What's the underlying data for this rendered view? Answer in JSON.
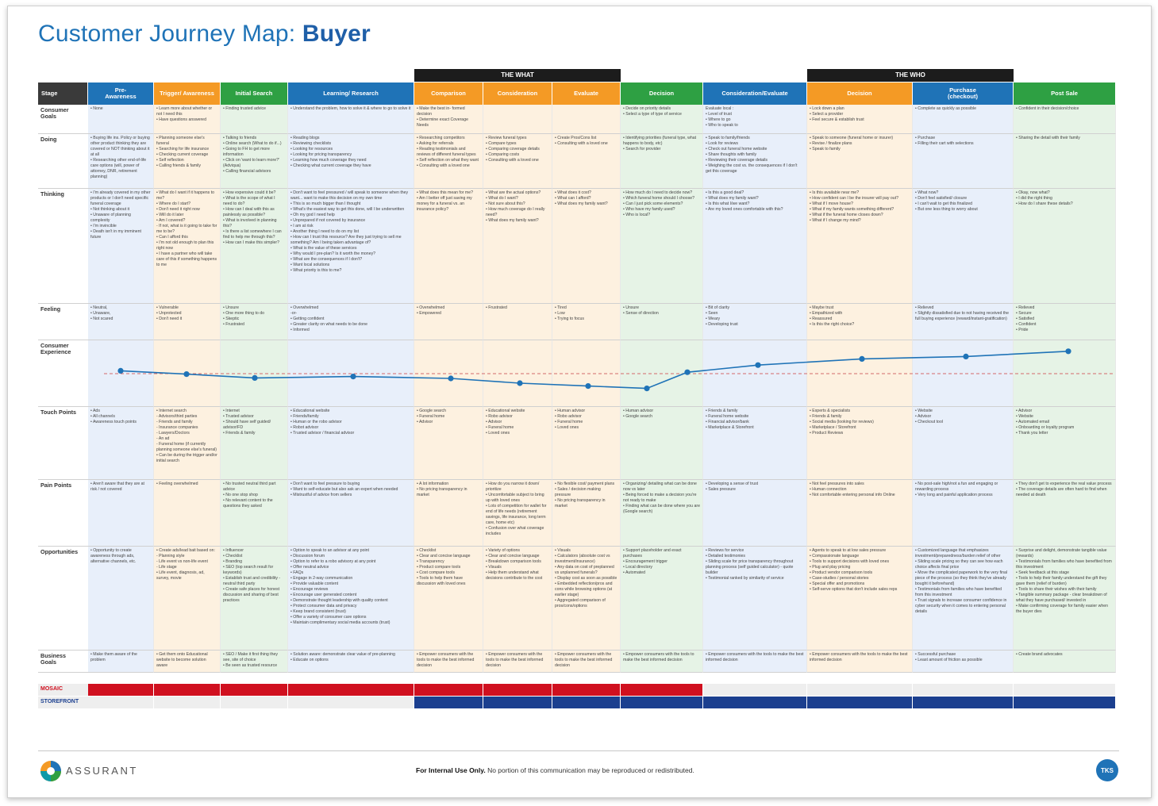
{
  "title_prefix": "Customer Journey Map: ",
  "title_bold": "Buyer",
  "bands": [
    {
      "label": "THE WHAT",
      "from": 4,
      "to": 6
    },
    {
      "label": "THE WHO",
      "from": 9,
      "to": 10
    }
  ],
  "stage_header": "Stage",
  "stages": [
    {
      "name": "Pre-\nAwareness",
      "color": "#1f73b7",
      "tint": "#e8effa"
    },
    {
      "name": "Trigger/ Awareness",
      "color": "#f49a25",
      "tint": "#fdf1e0"
    },
    {
      "name": "Initial Search",
      "color": "#2ea043",
      "tint": "#e6f3e6"
    },
    {
      "name": "Learning/ Research",
      "color": "#1f73b7",
      "tint": "#e8effa"
    },
    {
      "name": "Comparison",
      "color": "#f49a25",
      "tint": "#fdf1e0"
    },
    {
      "name": "Consideration",
      "color": "#f49a25",
      "tint": "#fdf1e0"
    },
    {
      "name": "Evaluate",
      "color": "#f49a25",
      "tint": "#fdf1e0"
    },
    {
      "name": "Decision",
      "color": "#2ea043",
      "tint": "#e6f3e6"
    },
    {
      "name": "Consideration/Evaluate",
      "color": "#1f73b7",
      "tint": "#e8effa"
    },
    {
      "name": "Decision",
      "color": "#f49a25",
      "tint": "#fdf1e0"
    },
    {
      "name": "Purchase\n(checkout)",
      "color": "#1f73b7",
      "tint": "#e8effa"
    },
    {
      "name": "Post Sale",
      "color": "#2ea043",
      "tint": "#e6f3e6"
    }
  ],
  "rows": [
    {
      "label": "Consumer\nGoals",
      "cells": [
        [
          "• None"
        ],
        [
          "• Learn more about whether or not I need this",
          "• Have questions answered"
        ],
        [
          "• Finding trusted advice"
        ],
        [
          "• Understand the problem, how to solve it & where to go to solve it"
        ],
        [
          "• Make the best in- formed decision",
          "• Determine exact Coverage Needs"
        ],
        [],
        [],
        [
          "• Decide on priority details",
          "• Select a type of type of service"
        ],
        [
          "Evaluate local :",
          "• Level of trust",
          "• Where to go",
          "• Who to speak to"
        ],
        [
          "• Lock down a plan",
          "• Select a provider",
          "• Feel secure & establish trust"
        ],
        [
          "• Complete as quickly as possible"
        ],
        [
          "• Confident in their decision/choice"
        ]
      ]
    },
    {
      "label": "Doing",
      "cells": [
        [
          "• Buying life ins. Policy or buying other product thinking they are covered or NOT thinking about it at all",
          "• Researching other end-of-life care options (will, power of attorney, DNR, retirement planning)"
        ],
        [
          "• Planning someone else's funeral",
          "• Searching for life insurance",
          "• Checking current coverage",
          "• Self reflection",
          "• Calling friends & family"
        ],
        [
          "• Talking to friends",
          "• Online search (What to do if...)",
          "• Going to FH to get more information",
          "• Click on 'want to learn more?' (Adviqua)",
          "• Calling financial advisors"
        ],
        [
          "• Reading blogs",
          "• Reviewing checklists",
          "• Looking for resources",
          "• Looking for pricing transparency",
          "• Learning how much coverage they need",
          "• Checking what current coverage they have"
        ],
        [
          "• Researching competitors",
          "• Asking for referrals",
          "• Reading testimonials and reviews of different funeral types",
          "• Self reflection on what they want",
          "• Consulting with a loved one"
        ],
        [
          "• Review funeral types",
          "• Compare types",
          "• Comparing coverage details",
          "• Comparing costs",
          "• Consulting with a loved one"
        ],
        [
          "• Create Pros/Cons list",
          "• Consulting with a loved one"
        ],
        [
          "• Identifying priorities (funeral type, what happens to body, etc)",
          "• Search for provider"
        ],
        [
          "• Speak to family/friends",
          "• Look for reviews",
          "• Check out funeral home website",
          "• Share thoughts with family",
          "• Reviewing their coverage details",
          "• Weighing the cost vs. the consequences if I don't get this coverage"
        ],
        [
          "• Speak to someone (funeral home or insurer)",
          "• Revise / finalize plans",
          "• Speak to family"
        ],
        [
          "• Purchase",
          "• Filling their cart with selections"
        ],
        [
          "• Sharing the detail with their family"
        ]
      ]
    },
    {
      "label": "Thinking",
      "cells": [
        [
          "• I'm already covered in my other products or I don't need specific funeral coverage",
          "• Not thinking about it",
          "• Unaware of planning complexity",
          "• I'm invincible",
          "• Death isn't in my imminent future"
        ],
        [
          "• What do I want if it happens to me?",
          "• Where do I start?",
          "• Don't need it right now",
          "• Will do it later",
          "• Am I covered?",
          "- If not, what is it going to take for me to be?",
          "• Can I afford this",
          "• I'm not old enough to plan this right now",
          "• I have a partner who will take care of this if something happens to me"
        ],
        [
          "• How expensive could it be?",
          "• What is the scope of what I need to do?",
          "• How can I deal with this as painlessly as possible?",
          "• What is involved in planning this?",
          "• Is there a list somewhere I can find to help me through this?",
          "• How can I make this simpler?"
        ],
        [
          "• Don't want to feel pressured / will speak to someone when they want... want to make this decision on my own time",
          "• This is so much bigger than I thought",
          "• What's the easiest way to get this done, will I be underwritten",
          "• Oh my god I need help",
          "• Unprepared if not covered by insurance",
          "• I am at risk",
          "• Another thing I need to do on my list",
          "• How can I trust this resource? Are they just trying to sell me something? Am I being taken advantage of?",
          "• What is the value of these services",
          "• Why would I pre-plan? Is it worth the money?",
          "• What are the consequences if I don't?",
          "• Want local solutions",
          "• What priority is this to me?"
        ],
        [
          "• What does this mean for me?",
          "• Am I better off just saving my money for a funeral vs. an insurance policy?"
        ],
        [
          "• What are the actual options?",
          "• What do I want?",
          "• Not sure about this?",
          "• How much coverage do I really need?",
          "• What does my family want?"
        ],
        [
          "• What does it cost?",
          "• What can I afford?",
          "• What does my family want?"
        ],
        [
          "• How much do I need to decide now?",
          "• Which funeral home should I choose?",
          "• Can I just pick some elements?",
          "• Who have my family used?",
          "• Who is local?"
        ],
        [
          "• Is this a good deal?",
          "• What does my family want?",
          "• Is this what I/we want?",
          "• Are my loved ones comfortable with this?"
        ],
        [
          "• Is this available near me?",
          "• How confident can I be the insurer will pay out?",
          "• What if I move house?",
          "• What if my family wants something different?",
          "• What if the funeral home closes down?",
          "• What if I change my mind?"
        ],
        [
          "• What now?",
          "• Don't feel satisfied/ closure",
          "• I can't wait to get this finalized",
          "• But one less thing to worry about"
        ],
        [
          "• Okay, now what?",
          "• I did the right thing",
          "• How do I share these details?"
        ]
      ]
    },
    {
      "label": "Feeling",
      "cells": [
        [
          "• Neutral,",
          "• Unaware,",
          "• Not scared"
        ],
        [
          "• Vulnerable",
          "• Unprotected",
          "• Don't need it"
        ],
        [
          "• Unsure",
          "• One more thing to do",
          "• Skeptic",
          "• Frustrated"
        ],
        [
          "• Overwhelmed",
          "-or-",
          "• Getting confident",
          "• Greater clarity on what needs to be done",
          "• Informed"
        ],
        [
          "• Overwhelmed",
          "• Empowered"
        ],
        [
          "• Frustrated"
        ],
        [
          "• Tired",
          "• Low",
          "• Trying to focus"
        ],
        [
          "• Unsure",
          "• Sense of direction"
        ],
        [
          "• Bit of clarity",
          "• Seen",
          "• Weary",
          "• Developing trust"
        ],
        [
          "• Maybe trust",
          "• Empathized with",
          "• Reassured",
          "• Is this the right choice?"
        ],
        [
          "• Relieved",
          "• Slightly dissatisfied due to not having received the full buying experience (reward/instant-gratification)"
        ],
        [
          "• Relieved",
          "• Secure",
          "• Satisfied",
          "• Confident",
          "• Pride"
        ]
      ]
    },
    {
      "label": "Consumer\nExperience",
      "experience": true
    },
    {
      "label": "Touch Points",
      "cells": [
        [
          "• Ads",
          "• All channels",
          "• Awareness touch points"
        ],
        [
          "• Internet search",
          "- Advisors/third parties",
          "- Friends and family",
          "- Insurance companies",
          "- Lawyers/Doctors",
          "- An ad",
          "- Funeral home (if currently planning someone else's funeral)",
          "• Can be during the trigger and/or initial search"
        ],
        [
          "• Internet",
          "• Trusted advisor",
          "• Should have self guided/ advisor/FD",
          "• Friends & family"
        ],
        [
          "• Educational website",
          "• Friends/family",
          "• Human or the robo advisor",
          "• Robot advisor",
          "• Trusted advisor / financial advisor"
        ],
        [
          "• Google search",
          "• Funeral home",
          "• Advisor"
        ],
        [
          "• Educational website",
          "• Robo advisor",
          "• Advisor",
          "• Funeral home",
          "• Loved ones"
        ],
        [
          "• Human advisor",
          "• Robo advisor",
          "• Funeral home",
          "• Loved ones"
        ],
        [
          "• Human advisor",
          "• Google search"
        ],
        [
          "• Friends & family",
          "• Funeral home website",
          "• Financial advisor/bank",
          "• Marketplace & Storefront"
        ],
        [
          "• Experts & specialists",
          "• Friends & family",
          "• Social media (looking for reviews)",
          "• Marketplace / Storefront",
          "• Product Reviews"
        ],
        [
          "• Website",
          "• Advisor",
          "• Checkout tool"
        ],
        [
          "• Advisor",
          "• Website",
          "• Automated email",
          "• Onboarding or loyalty program",
          "• Thank you letter"
        ]
      ]
    },
    {
      "label": "Pain Points",
      "cells": [
        [
          "• Aren't aware that they are at risk / not covered"
        ],
        [
          "• Feeling overwhelmed"
        ],
        [
          "• No trusted neutral third part advice",
          "• No one stop shop",
          "• No relevant content to the questions they asked"
        ],
        [
          "• Don't want to feel pressure to buying",
          "• Want to self-educate but also ask an expert when needed",
          "• Mistrustful of advice from sellers"
        ],
        [
          "• A lot information",
          "• No pricing transparency in market"
        ],
        [
          "• How do you narrow it down/ prioritize",
          "• Uncomfortable subject to bring up with loved ones",
          "• Lots of competition for wallet for end of life needs (retirement savings, life insurance, long term care, home etc)",
          "• Confusion over what coverage includes"
        ],
        [
          "• No flexible cost/ payment plans",
          "• Sales / decision making pressure",
          "• No pricing transparency in market"
        ],
        [
          "• Organizing/ detailing what can be done now vs later",
          "• Being forced to make a decision you're not ready to make",
          "• Finding what can be done where you are (Google search)"
        ],
        [
          "• Developing a sense of trust",
          "• Sales pressure"
        ],
        [
          "• Not feel pressures into sales",
          "• Human connection",
          "• Not comfortable entering personal info Online"
        ],
        [
          "• No post-sale high/not a fun and engaging or rewarding process",
          "• Very long and painful application process"
        ],
        [
          "• They don't get to experience the real value process",
          "• The coverage details are often hard to find when needed at death"
        ]
      ]
    },
    {
      "label": "Opportunities",
      "cells": [
        [
          "• Opportunity to create awareness through ads, alternative channels, etc."
        ],
        [
          "• Create ads/lead bait based on:",
          "- Planning style",
          "- Life event vs non-life event",
          "- Life stage",
          "• Life event, diagnosis, ad, survey, movie"
        ],
        [
          "• Influencer",
          "• Checklist",
          "• Branding",
          "• SEO (top search result for keywords)",
          "• Establish trust and credibility - neutral third party",
          "• Create safe places for honest discussion and sharing of best practices"
        ],
        [
          "• Option to speak to an advisor at any point",
          "• Discussion forum",
          "• Option to refer to a robo advisory at any point",
          "• Offer neutral advice",
          "• FAQs",
          "• Engage in 2-way communication",
          "• Provide valuable content",
          "• Encourage reviews",
          "• Encourage user generated content",
          "• Demonstrate thought leadership with quality content",
          "• Protect consumer data and privacy",
          "• Keep brand consistent (trust)",
          "• Offer a variety of consumer care options",
          "• Maintain complimentary social media accounts (trust)"
        ],
        [
          "• Checklist",
          "• Clear and concise language",
          "• Transparency",
          "• Product compare tools",
          "• Cost compare tools",
          "• Tools to help them have discussion with loved ones"
        ],
        [
          "• Variety of options",
          "• Clear and concise language",
          "• Breakdown comparison tools",
          "• Visuals",
          "• Help them understand what decisions contribute to the cost"
        ],
        [
          "• Visuals",
          "• Calculators (absolute cost vs investment/insurance)",
          "• Any data on cost of preplanned vs unplanned funerals?",
          "• Display cost as soon as possible",
          "• Embedded reflection/pros and cons while browsing options (at earlier stage)",
          "• Aggregated comparison of pros/cons/options"
        ],
        [
          "• Support placeholder and exact purchases",
          "• Encouragement trigger",
          "• Local directory",
          "• Automated"
        ],
        [
          "• Reviews for service",
          "• Detailed testimonies",
          "• Sliding scale for price transparency throughout planning process (self guided calculator) - quote builder",
          "• Testimonial ranked by similarity of service"
        ],
        [
          "• Agents to speak to at low sales pressure",
          "• Compassionate language",
          "• Tools to support decisions with loved ones",
          "• Plug and play pricing",
          "• Product vendor comparison tools",
          "• Case-studies / personal stories",
          "• Special offer and promotions",
          "• Self-serve options that don't include sales reps"
        ],
        [
          "• Customized language that emphasizes investment/preparedness/burden relief of other",
          "• Sliding scale pricing so they can see how each choice affects final price",
          "• Move the complicated paperwork to the very final piece of the process (so they think they've already bought it beforehand)",
          "• Testimonials from families who have benefited from this investment",
          "• Trust signals to increase consumer confidence in cyber security when it comes to entering personal details"
        ],
        [
          "• Surprise and delight, demonstrate tangible value (rewards)",
          "• Testimonials from families who have benefited from this investment",
          "• Seek feedback at this stage",
          "• Tools to help their family understand the gift they gave them (relief of burden)",
          "• Tools to share their wishes with their family",
          "• Tangible summary package - clear breakdown of what they have purchased/ invested in",
          "• Make confirming coverage for family easier when the buyer dies"
        ]
      ]
    },
    {
      "label": "Business\nGoals",
      "cells": [
        [
          "• Make them aware of the problem"
        ],
        [
          "• Get them onto Educational website to become solution aware"
        ],
        [
          "• SEO / Make it first thing they see, site of choice",
          "• Be seen as trusted resource"
        ],
        [
          "• Solution aware: demonstrate clear value of pre-planning",
          "• Educate on options"
        ],
        [
          "• Empower consumers with the tools to make the best informed decision"
        ],
        [
          "• Empower consumers with the tools to make the best informed decision"
        ],
        [
          "• Empower consumers with the tools to make the best informed decision"
        ],
        [
          "• Empower consumers with the tools to make the best informed decision"
        ],
        [
          "• Empower consumers with the tools to make the best informed decision"
        ],
        [
          "• Empower consumers with the tools to make the best informed decision"
        ],
        [
          "• Successful purchase",
          "• Least amount of friction as possible"
        ],
        [
          "• Create brand advocates"
        ]
      ]
    }
  ],
  "experience_scores": [
    5.6,
    4.9,
    4.1,
    4.4,
    4.0,
    3.0,
    2.4,
    1.9,
    5.3,
    6.8,
    8.1,
    8.6,
    9.7
  ],
  "experience_baseline": 5.0,
  "experience_range": [
    0,
    10
  ],
  "mosaic_label": "MOSAIC",
  "storefront_label": "STOREFRONT",
  "colors": {
    "mosaic": "#d0101f",
    "storefront": "#1b3f8f",
    "blue": "#1f73b7"
  },
  "footer": {
    "brand": "ASSURANT",
    "notice_bold": "For Internal Use Only.",
    "notice_rest": " No portion of this communication may be reproduced or redistributed.",
    "badge": "TKS"
  }
}
